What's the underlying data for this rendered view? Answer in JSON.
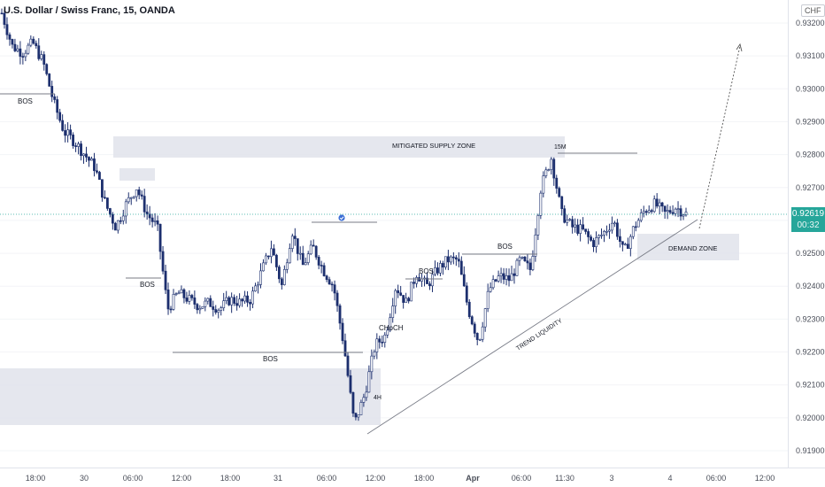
{
  "header": {
    "title": "U.S. Dollar / Swiss Franc, 15, OANDA"
  },
  "price_axis": {
    "currency": "CHF",
    "current_price": "0.92619",
    "countdown": "00:32"
  },
  "colors": {
    "up": "#26a69a",
    "down": "#1e3a8a",
    "candle": "#1c2f6e",
    "zone": "#e0e3eb",
    "line": "#787b86",
    "accent": "#26a69a",
    "checkmark": "#3c6fd6",
    "text": "#131722"
  },
  "chart_data": {
    "type": "candlestick",
    "title": "U.S. Dollar / Swiss Franc, 15, OANDA",
    "ylim": [
      0.9185,
      0.933
    ],
    "y_ticks": [
      "0.93200",
      "0.93100",
      "0.93000",
      "0.92900",
      "0.92800",
      "0.92700",
      "0.92600",
      "0.92500",
      "0.92400",
      "0.92300",
      "0.92200",
      "0.92100",
      "0.92000",
      "0.91900"
    ],
    "x_ticks": [
      "18:00",
      "30",
      "06:00",
      "12:00",
      "18:00",
      "31",
      "06:00",
      "12:00",
      "18:00",
      "Apr",
      "06:00",
      "11:30",
      "3",
      "4",
      "06:00",
      "12:00"
    ],
    "price_path": [
      0.9323,
      0.9313,
      0.9311,
      0.9314,
      0.9308,
      0.9296,
      0.9287,
      0.9284,
      0.928,
      0.9276,
      0.9265,
      0.9258,
      0.9265,
      0.927,
      0.9262,
      0.9258,
      0.9233,
      0.9238,
      0.9236,
      0.9234,
      0.9235,
      0.9233,
      0.9236,
      0.9235,
      0.9236,
      0.9244,
      0.9252,
      0.924,
      0.9257,
      0.9246,
      0.9252,
      0.9245,
      0.924,
      0.9222,
      0.9198,
      0.9207,
      0.9222,
      0.9225,
      0.924,
      0.9235,
      0.9244,
      0.924,
      0.9245,
      0.9248,
      0.9248,
      0.9233,
      0.9223,
      0.9239,
      0.9243,
      0.9242,
      0.9248,
      0.9245,
      0.927,
      0.9279,
      0.9262,
      0.9258,
      0.9257,
      0.9253,
      0.9256,
      0.926,
      0.925,
      0.9258,
      0.9263,
      0.9265,
      0.9262,
      0.9264,
      0.9262
    ],
    "current_price": 0.92619,
    "annotations": [
      {
        "label": "BOS"
      },
      {
        "label": "MITIGATED SUPPLY ZONE"
      },
      {
        "label": "BOS"
      },
      {
        "label": "BOS"
      },
      {
        "label": "CHoCH"
      },
      {
        "label": "4H"
      },
      {
        "label": "BOS"
      },
      {
        "label": "BOS"
      },
      {
        "label": "15M"
      },
      {
        "label": "TREND LIQUIDITY"
      },
      {
        "label": "DEMAND ZONE"
      }
    ],
    "zones": [
      {
        "label": "MITIGATED SUPPLY ZONE",
        "from": 0.9281,
        "to": 0.9285
      },
      {
        "label": "supply-small",
        "from": 0.92745,
        "to": 0.9276
      },
      {
        "label": "demand-low",
        "from": 0.91985,
        "to": 0.9215
      },
      {
        "label": "DEMAND ZONE",
        "from": 0.9248,
        "to": 0.92555
      }
    ]
  }
}
